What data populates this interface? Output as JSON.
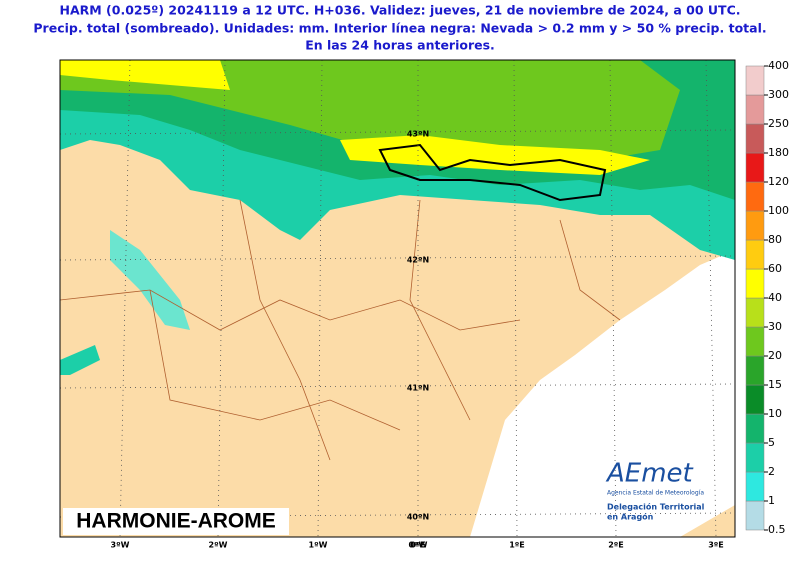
{
  "header": {
    "lines": [
      "HARM (0.025º) 20241119 a 12 UTC. H+036. Validez: jueves, 21 de noviembre de 2024, a 00 UTC.",
      "Precip. total (sombreado). Unidades: mm. Interior línea negra: Nevada > 0.2 mm y > 50 % precip. total.",
      "En las 24 horas anteriores."
    ]
  },
  "map": {
    "lat_labels": [
      "43ºN",
      "42ºN",
      "41ºN",
      "40ºN"
    ],
    "lon_labels": [
      "3ºW",
      "2ºW",
      "1ºW",
      "0ºW",
      "0ºE",
      "1ºE",
      "2ºE",
      "3ºE"
    ],
    "model": "HARMONIE-AROME"
  },
  "logo": {
    "name": "AEmet",
    "agency": "Agencia Estatal de Meteorología",
    "office": [
      "Delegación Territorial",
      "en Aragón"
    ]
  },
  "colorbar": {
    "levels": [
      0.5,
      1,
      2,
      5,
      10,
      15,
      20,
      30,
      40,
      60,
      80,
      100,
      120,
      180,
      250,
      300,
      400
    ],
    "colors": [
      "#b4dce6",
      "#2ee8e0",
      "#1ccfa8",
      "#14b46c",
      "#0a8c28",
      "#2aa52a",
      "#6ec81e",
      "#b8e01a",
      "#ffff00",
      "#ffcc10",
      "#ff9b10",
      "#ff6a10",
      "#e81818",
      "#c85a5a",
      "#e49a9a",
      "#f2cccc"
    ]
  }
}
